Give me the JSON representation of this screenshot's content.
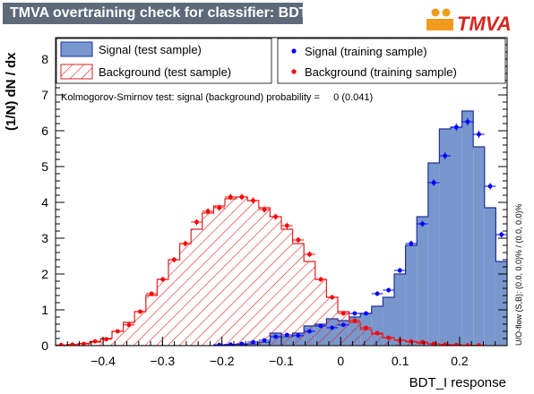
{
  "title": "TMVA overtraining check for classifier: BDT_I",
  "logo_text": "TMVA",
  "legend": {
    "signal_test": "Signal (test sample)",
    "signal_train": "Signal (training sample)",
    "background_test": "Background (test sample)",
    "background_train": "Background (training sample)"
  },
  "ks_text": "Kolmogorov-Smirnov test: signal (background) probability =     0 (0.041)",
  "overflow_text": "U/O-flow (S,B): (0.0, 0.0)% / (0.0, 0.0)%",
  "colors": {
    "signal_fill": "#7897cd",
    "signal_line": "#1e32a0",
    "signal_points": "#0000ff",
    "background_hatch": "#dd2222",
    "background_points": "#ff0000",
    "title_bg": "#5e6a7a"
  },
  "chart_data": {
    "type": "bar",
    "xlabel": "BDT_I response",
    "ylabel": "(1/N) dN / dx",
    "xlim": [
      -0.48,
      0.28
    ],
    "ylim": [
      0,
      8.6
    ],
    "xticks": [
      -0.4,
      -0.3,
      -0.2,
      -0.1,
      0,
      0.1,
      0.2
    ],
    "xtick_labels": [
      "−0.4",
      "−0.3",
      "−0.2",
      "−0.1",
      "0",
      "0.1",
      "0.2"
    ],
    "yticks": [
      0,
      1,
      2,
      3,
      4,
      5,
      6,
      7,
      8
    ],
    "bin_edges_start": -0.48,
    "bin_width": 0.019,
    "series": [
      {
        "name": "Signal (test sample)",
        "kind": "hist-filled",
        "values": [
          0,
          0,
          0,
          0,
          0,
          0,
          0,
          0,
          0,
          0,
          0,
          0,
          0,
          0,
          0.02,
          0.03,
          0.03,
          0.05,
          0.1,
          0.35,
          0.25,
          0.35,
          0.55,
          0.6,
          0.75,
          0.7,
          0.8,
          0.9,
          1.1,
          1.35,
          2.0,
          2.8,
          3.6,
          5.1,
          6.05,
          6.1,
          6.55,
          5.55,
          3.85,
          2.35,
          1.7,
          0.7,
          0.15
        ]
      },
      {
        "name": "Background (test sample)",
        "kind": "hist-hatched",
        "values": [
          0.01,
          0.03,
          0.06,
          0.1,
          0.2,
          0.4,
          0.65,
          0.95,
          1.4,
          1.85,
          2.4,
          2.85,
          3.25,
          3.7,
          3.9,
          4.1,
          4.15,
          4.05,
          3.85,
          3.6,
          3.25,
          2.85,
          2.35,
          1.85,
          1.35,
          0.95,
          0.65,
          0.45,
          0.32,
          0.22,
          0.15,
          0.11,
          0.07,
          0.05,
          0.03,
          0.02,
          0.01,
          0.01,
          0,
          0,
          0,
          0,
          0
        ]
      },
      {
        "name": "Signal (training sample)",
        "kind": "points",
        "values": [
          0,
          0,
          0,
          0,
          0,
          0,
          0,
          0,
          0,
          0,
          0,
          0,
          0,
          0,
          0.02,
          0.03,
          0.05,
          0.1,
          0.15,
          0.25,
          0.3,
          0.28,
          0.4,
          0.55,
          0.5,
          0.58,
          0.9,
          0.9,
          1.45,
          1.55,
          2.1,
          2.85,
          3.4,
          4.55,
          5.3,
          6.1,
          6.25,
          5.9,
          4.45,
          3.1,
          1.6,
          0.75,
          0.08
        ]
      },
      {
        "name": "Background (training sample)",
        "kind": "points",
        "values": [
          0.02,
          0.03,
          0.05,
          0.12,
          0.18,
          0.4,
          0.58,
          0.95,
          1.45,
          1.85,
          2.4,
          2.85,
          3.45,
          3.75,
          3.85,
          4.15,
          4.15,
          4.05,
          3.8,
          3.6,
          3.35,
          2.95,
          2.55,
          1.85,
          1.35,
          0.9,
          0.7,
          0.5,
          0.35,
          0.22,
          0.15,
          0.12,
          0.1,
          0.05,
          0.03,
          0.02,
          0.01,
          0.01,
          0,
          0,
          0,
          0,
          0
        ]
      }
    ],
    "legend_position": "top"
  }
}
